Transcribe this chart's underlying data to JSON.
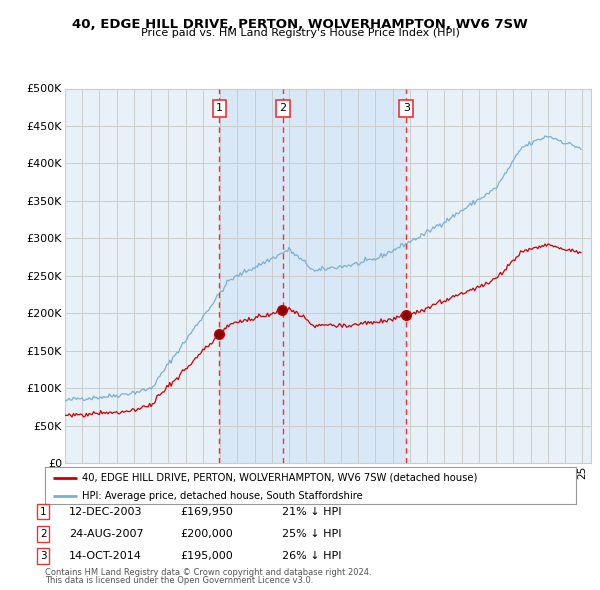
{
  "title": "40, EDGE HILL DRIVE, PERTON, WOLVERHAMPTON, WV6 7SW",
  "subtitle": "Price paid vs. HM Land Registry's House Price Index (HPI)",
  "red_label": "40, EDGE HILL DRIVE, PERTON, WOLVERHAMPTON, WV6 7SW (detached house)",
  "blue_label": "HPI: Average price, detached house, South Staffordshire",
  "footer1": "Contains HM Land Registry data © Crown copyright and database right 2024.",
  "footer2": "This data is licensed under the Open Government Licence v3.0.",
  "transactions": [
    {
      "num": "1",
      "date": "12-DEC-2003",
      "price": "£169,950",
      "hpi": "21% ↓ HPI",
      "year": 2003,
      "month": 12
    },
    {
      "num": "2",
      "date": "24-AUG-2007",
      "price": "£200,000",
      "hpi": "25% ↓ HPI",
      "year": 2007,
      "month": 8
    },
    {
      "num": "3",
      "date": "14-OCT-2014",
      "price": "£195,000",
      "hpi": "26% ↓ HPI",
      "year": 2014,
      "month": 10
    }
  ],
  "ylim": [
    0,
    500000
  ],
  "yticks": [
    0,
    50000,
    100000,
    150000,
    200000,
    250000,
    300000,
    350000,
    400000,
    450000,
    500000
  ],
  "ytick_labels": [
    "£0",
    "£50K",
    "£100K",
    "£150K",
    "£200K",
    "£250K",
    "£300K",
    "£350K",
    "£400K",
    "£450K",
    "£500K"
  ],
  "background_color": "#ffffff",
  "plot_bg_color": "#e8f0f8",
  "grid_color": "#cccccc",
  "red_color": "#cc0000",
  "blue_color": "#7ab0d4",
  "dashed_color": "#ee3333",
  "shade_color": "#dce8f5",
  "start_year": 1995,
  "end_year": 2025
}
